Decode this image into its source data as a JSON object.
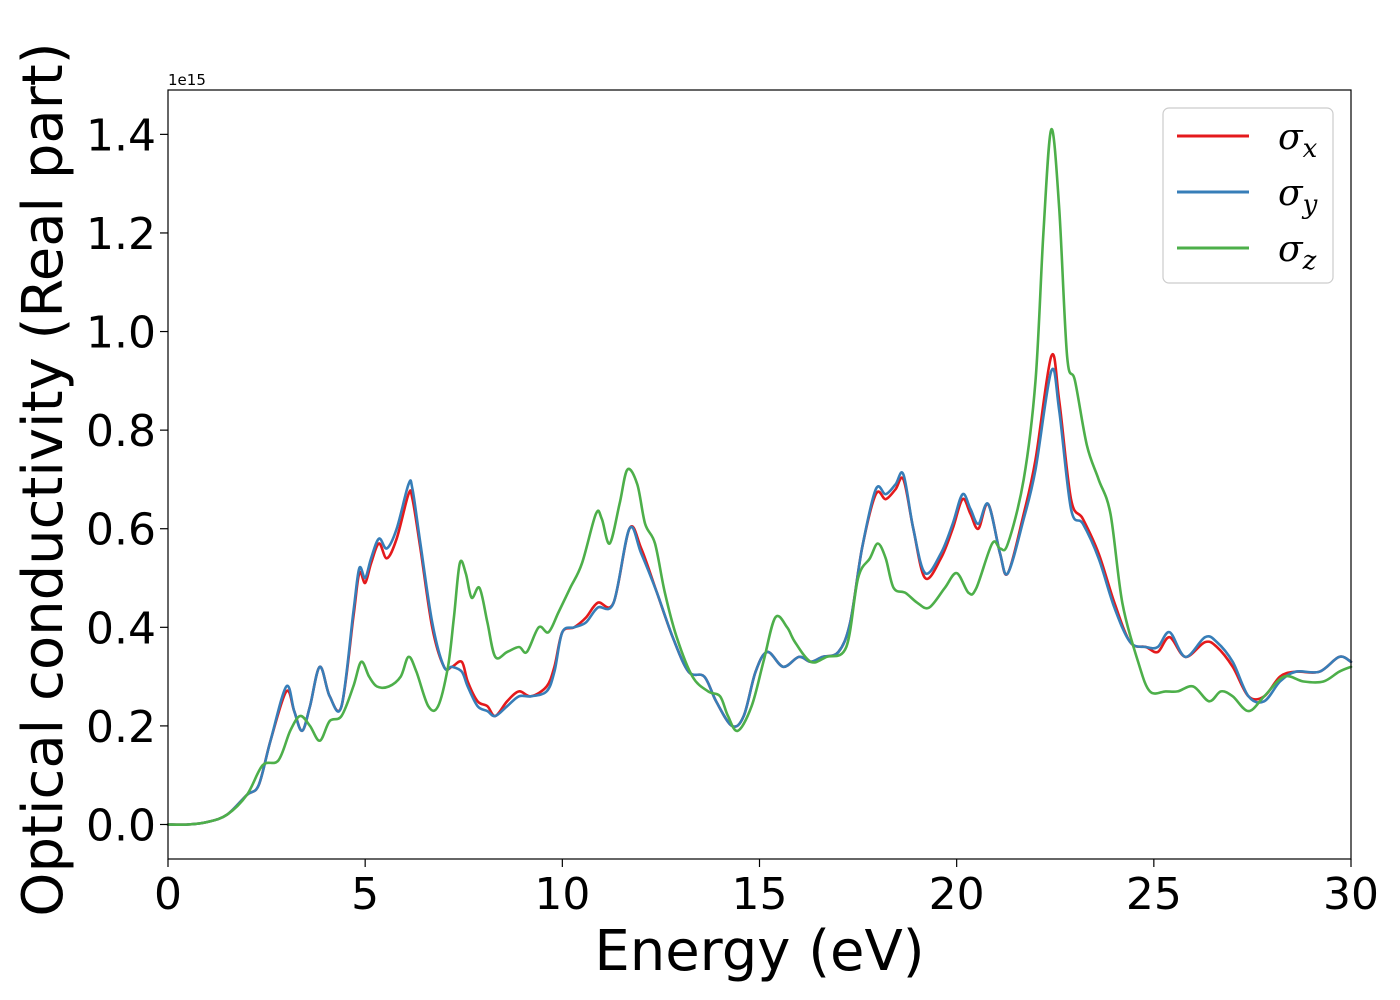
{
  "chart_data": {
    "type": "line",
    "xlabel": "Energy (eV)",
    "ylabel": "Optical conductivity (Real part)",
    "y_offset_label": "1e15",
    "xlim": [
      0,
      30
    ],
    "ylim": [
      -0.07,
      1.49
    ],
    "x_ticks": [
      0,
      5,
      10,
      15,
      20,
      25,
      30
    ],
    "x_tick_labels": [
      "0",
      "5",
      "10",
      "15",
      "20",
      "25",
      "30"
    ],
    "y_ticks": [
      0.0,
      0.2,
      0.4,
      0.6,
      0.8,
      1.0,
      1.2,
      1.4
    ],
    "y_tick_labels": [
      "0.0",
      "0.2",
      "0.4",
      "0.6",
      "0.8",
      "1.0",
      "1.2",
      "1.4"
    ],
    "grid": false,
    "legend_position": "top-right",
    "series": [
      {
        "name": "σx",
        "symbol": "σ",
        "subscript": "x",
        "color": "#e41a1c",
        "points": [
          [
            0,
            0.0
          ],
          [
            0.5,
            0.0
          ],
          [
            1.0,
            0.005
          ],
          [
            1.5,
            0.02
          ],
          [
            2.0,
            0.06
          ],
          [
            2.3,
            0.08
          ],
          [
            2.6,
            0.17
          ],
          [
            3.0,
            0.27
          ],
          [
            3.2,
            0.23
          ],
          [
            3.4,
            0.19
          ],
          [
            3.6,
            0.24
          ],
          [
            3.85,
            0.32
          ],
          [
            4.1,
            0.26
          ],
          [
            4.4,
            0.24
          ],
          [
            4.7,
            0.42
          ],
          [
            4.85,
            0.51
          ],
          [
            5.0,
            0.49
          ],
          [
            5.15,
            0.53
          ],
          [
            5.35,
            0.57
          ],
          [
            5.55,
            0.54
          ],
          [
            5.8,
            0.58
          ],
          [
            6.1,
            0.67
          ],
          [
            6.2,
            0.66
          ],
          [
            6.4,
            0.56
          ],
          [
            6.7,
            0.4
          ],
          [
            7.0,
            0.32
          ],
          [
            7.2,
            0.32
          ],
          [
            7.45,
            0.33
          ],
          [
            7.6,
            0.29
          ],
          [
            7.85,
            0.25
          ],
          [
            8.1,
            0.24
          ],
          [
            8.3,
            0.22
          ],
          [
            8.6,
            0.25
          ],
          [
            8.9,
            0.27
          ],
          [
            9.2,
            0.26
          ],
          [
            9.6,
            0.28
          ],
          [
            9.8,
            0.32
          ],
          [
            10.0,
            0.39
          ],
          [
            10.3,
            0.4
          ],
          [
            10.6,
            0.42
          ],
          [
            10.9,
            0.45
          ],
          [
            11.3,
            0.45
          ],
          [
            11.7,
            0.6
          ],
          [
            12.0,
            0.56
          ],
          [
            12.4,
            0.47
          ],
          [
            12.8,
            0.38
          ],
          [
            13.2,
            0.31
          ],
          [
            13.6,
            0.3
          ],
          [
            13.9,
            0.25
          ],
          [
            14.3,
            0.2
          ],
          [
            14.6,
            0.22
          ],
          [
            14.9,
            0.31
          ],
          [
            15.2,
            0.35
          ],
          [
            15.6,
            0.32
          ],
          [
            16.0,
            0.34
          ],
          [
            16.3,
            0.33
          ],
          [
            16.6,
            0.34
          ],
          [
            17.0,
            0.35
          ],
          [
            17.3,
            0.41
          ],
          [
            17.6,
            0.56
          ],
          [
            17.95,
            0.67
          ],
          [
            18.2,
            0.66
          ],
          [
            18.45,
            0.68
          ],
          [
            18.65,
            0.7
          ],
          [
            18.9,
            0.6
          ],
          [
            19.2,
            0.5
          ],
          [
            19.6,
            0.54
          ],
          [
            19.9,
            0.6
          ],
          [
            20.15,
            0.66
          ],
          [
            20.35,
            0.63
          ],
          [
            20.55,
            0.6
          ],
          [
            20.8,
            0.65
          ],
          [
            21.1,
            0.55
          ],
          [
            21.3,
            0.51
          ],
          [
            21.7,
            0.63
          ],
          [
            22.0,
            0.74
          ],
          [
            22.4,
            0.95
          ],
          [
            22.6,
            0.86
          ],
          [
            22.9,
            0.66
          ],
          [
            23.2,
            0.62
          ],
          [
            23.6,
            0.55
          ],
          [
            24.0,
            0.45
          ],
          [
            24.4,
            0.37
          ],
          [
            24.8,
            0.36
          ],
          [
            25.1,
            0.35
          ],
          [
            25.4,
            0.38
          ],
          [
            25.8,
            0.34
          ],
          [
            26.3,
            0.37
          ],
          [
            26.6,
            0.36
          ],
          [
            27.0,
            0.32
          ],
          [
            27.4,
            0.26
          ],
          [
            27.8,
            0.26
          ],
          [
            28.2,
            0.3
          ],
          [
            28.6,
            0.31
          ],
          [
            29.2,
            0.31
          ],
          [
            29.7,
            0.34
          ],
          [
            30.0,
            0.33
          ]
        ]
      },
      {
        "name": "σy",
        "symbol": "σ",
        "subscript": "y",
        "color": "#377eb8",
        "points": [
          [
            0,
            0.0
          ],
          [
            0.5,
            0.0
          ],
          [
            1.0,
            0.005
          ],
          [
            1.5,
            0.02
          ],
          [
            2.0,
            0.06
          ],
          [
            2.3,
            0.08
          ],
          [
            2.6,
            0.17
          ],
          [
            3.0,
            0.28
          ],
          [
            3.2,
            0.23
          ],
          [
            3.4,
            0.19
          ],
          [
            3.6,
            0.24
          ],
          [
            3.85,
            0.32
          ],
          [
            4.1,
            0.26
          ],
          [
            4.4,
            0.24
          ],
          [
            4.7,
            0.43
          ],
          [
            4.85,
            0.52
          ],
          [
            5.0,
            0.5
          ],
          [
            5.15,
            0.54
          ],
          [
            5.35,
            0.58
          ],
          [
            5.55,
            0.56
          ],
          [
            5.8,
            0.6
          ],
          [
            6.1,
            0.69
          ],
          [
            6.2,
            0.68
          ],
          [
            6.4,
            0.57
          ],
          [
            6.7,
            0.41
          ],
          [
            7.0,
            0.32
          ],
          [
            7.2,
            0.32
          ],
          [
            7.45,
            0.31
          ],
          [
            7.6,
            0.28
          ],
          [
            7.85,
            0.24
          ],
          [
            8.1,
            0.23
          ],
          [
            8.3,
            0.22
          ],
          [
            8.6,
            0.24
          ],
          [
            8.9,
            0.26
          ],
          [
            9.2,
            0.26
          ],
          [
            9.6,
            0.27
          ],
          [
            9.8,
            0.31
          ],
          [
            10.0,
            0.39
          ],
          [
            10.3,
            0.4
          ],
          [
            10.6,
            0.41
          ],
          [
            10.9,
            0.44
          ],
          [
            11.3,
            0.45
          ],
          [
            11.7,
            0.6
          ],
          [
            12.0,
            0.55
          ],
          [
            12.4,
            0.47
          ],
          [
            12.8,
            0.38
          ],
          [
            13.2,
            0.31
          ],
          [
            13.6,
            0.3
          ],
          [
            13.9,
            0.25
          ],
          [
            14.3,
            0.2
          ],
          [
            14.6,
            0.22
          ],
          [
            14.9,
            0.31
          ],
          [
            15.2,
            0.35
          ],
          [
            15.6,
            0.32
          ],
          [
            16.0,
            0.34
          ],
          [
            16.3,
            0.33
          ],
          [
            16.6,
            0.34
          ],
          [
            17.0,
            0.35
          ],
          [
            17.3,
            0.41
          ],
          [
            17.6,
            0.56
          ],
          [
            17.95,
            0.68
          ],
          [
            18.2,
            0.67
          ],
          [
            18.45,
            0.69
          ],
          [
            18.65,
            0.71
          ],
          [
            18.9,
            0.6
          ],
          [
            19.2,
            0.51
          ],
          [
            19.6,
            0.55
          ],
          [
            19.9,
            0.61
          ],
          [
            20.15,
            0.67
          ],
          [
            20.35,
            0.64
          ],
          [
            20.55,
            0.61
          ],
          [
            20.8,
            0.65
          ],
          [
            21.1,
            0.55
          ],
          [
            21.3,
            0.51
          ],
          [
            21.7,
            0.62
          ],
          [
            22.0,
            0.72
          ],
          [
            22.4,
            0.92
          ],
          [
            22.6,
            0.84
          ],
          [
            22.9,
            0.64
          ],
          [
            23.2,
            0.61
          ],
          [
            23.6,
            0.54
          ],
          [
            24.0,
            0.44
          ],
          [
            24.4,
            0.37
          ],
          [
            24.8,
            0.36
          ],
          [
            25.1,
            0.36
          ],
          [
            25.4,
            0.39
          ],
          [
            25.8,
            0.34
          ],
          [
            26.3,
            0.38
          ],
          [
            26.6,
            0.37
          ],
          [
            27.0,
            0.33
          ],
          [
            27.4,
            0.26
          ],
          [
            27.8,
            0.25
          ],
          [
            28.2,
            0.29
          ],
          [
            28.6,
            0.31
          ],
          [
            29.2,
            0.31
          ],
          [
            29.7,
            0.34
          ],
          [
            30.0,
            0.33
          ]
        ]
      },
      {
        "name": "σz",
        "symbol": "σ",
        "subscript": "z",
        "color": "#4daf4a",
        "points": [
          [
            0,
            0.0
          ],
          [
            0.5,
            0.0
          ],
          [
            1.0,
            0.005
          ],
          [
            1.5,
            0.02
          ],
          [
            2.0,
            0.06
          ],
          [
            2.4,
            0.12
          ],
          [
            2.8,
            0.13
          ],
          [
            3.1,
            0.19
          ],
          [
            3.35,
            0.22
          ],
          [
            3.6,
            0.2
          ],
          [
            3.85,
            0.17
          ],
          [
            4.1,
            0.21
          ],
          [
            4.4,
            0.22
          ],
          [
            4.7,
            0.28
          ],
          [
            4.9,
            0.33
          ],
          [
            5.1,
            0.3
          ],
          [
            5.3,
            0.28
          ],
          [
            5.6,
            0.28
          ],
          [
            5.9,
            0.3
          ],
          [
            6.1,
            0.34
          ],
          [
            6.3,
            0.31
          ],
          [
            6.6,
            0.24
          ],
          [
            6.85,
            0.24
          ],
          [
            7.1,
            0.32
          ],
          [
            7.25,
            0.42
          ],
          [
            7.4,
            0.53
          ],
          [
            7.55,
            0.51
          ],
          [
            7.7,
            0.46
          ],
          [
            7.9,
            0.48
          ],
          [
            8.1,
            0.41
          ],
          [
            8.3,
            0.34
          ],
          [
            8.6,
            0.35
          ],
          [
            8.9,
            0.36
          ],
          [
            9.1,
            0.35
          ],
          [
            9.4,
            0.4
          ],
          [
            9.65,
            0.39
          ],
          [
            9.9,
            0.43
          ],
          [
            10.2,
            0.48
          ],
          [
            10.5,
            0.53
          ],
          [
            10.85,
            0.63
          ],
          [
            11.0,
            0.62
          ],
          [
            11.2,
            0.57
          ],
          [
            11.45,
            0.65
          ],
          [
            11.65,
            0.72
          ],
          [
            11.9,
            0.69
          ],
          [
            12.1,
            0.61
          ],
          [
            12.35,
            0.57
          ],
          [
            12.6,
            0.47
          ],
          [
            12.9,
            0.38
          ],
          [
            13.3,
            0.3
          ],
          [
            13.7,
            0.27
          ],
          [
            14.0,
            0.26
          ],
          [
            14.2,
            0.22
          ],
          [
            14.45,
            0.19
          ],
          [
            14.8,
            0.24
          ],
          [
            15.1,
            0.33
          ],
          [
            15.4,
            0.42
          ],
          [
            15.7,
            0.4
          ],
          [
            15.9,
            0.37
          ],
          [
            16.3,
            0.33
          ],
          [
            16.7,
            0.34
          ],
          [
            17.2,
            0.36
          ],
          [
            17.5,
            0.5
          ],
          [
            17.8,
            0.54
          ],
          [
            18.0,
            0.57
          ],
          [
            18.2,
            0.54
          ],
          [
            18.4,
            0.48
          ],
          [
            18.7,
            0.47
          ],
          [
            19.0,
            0.45
          ],
          [
            19.3,
            0.44
          ],
          [
            19.7,
            0.48
          ],
          [
            20.0,
            0.51
          ],
          [
            20.3,
            0.47
          ],
          [
            20.5,
            0.48
          ],
          [
            20.9,
            0.57
          ],
          [
            21.1,
            0.56
          ],
          [
            21.3,
            0.57
          ],
          [
            21.7,
            0.7
          ],
          [
            22.0,
            0.9
          ],
          [
            22.2,
            1.2
          ],
          [
            22.4,
            1.41
          ],
          [
            22.6,
            1.25
          ],
          [
            22.8,
            0.95
          ],
          [
            23.0,
            0.9
          ],
          [
            23.3,
            0.77
          ],
          [
            23.6,
            0.7
          ],
          [
            23.9,
            0.63
          ],
          [
            24.2,
            0.45
          ],
          [
            24.6,
            0.33
          ],
          [
            24.9,
            0.27
          ],
          [
            25.3,
            0.27
          ],
          [
            25.6,
            0.27
          ],
          [
            26.0,
            0.28
          ],
          [
            26.4,
            0.25
          ],
          [
            26.7,
            0.27
          ],
          [
            27.0,
            0.26
          ],
          [
            27.4,
            0.23
          ],
          [
            27.8,
            0.26
          ],
          [
            28.3,
            0.3
          ],
          [
            28.8,
            0.29
          ],
          [
            29.3,
            0.29
          ],
          [
            29.7,
            0.31
          ],
          [
            30.0,
            0.32
          ]
        ]
      }
    ]
  }
}
